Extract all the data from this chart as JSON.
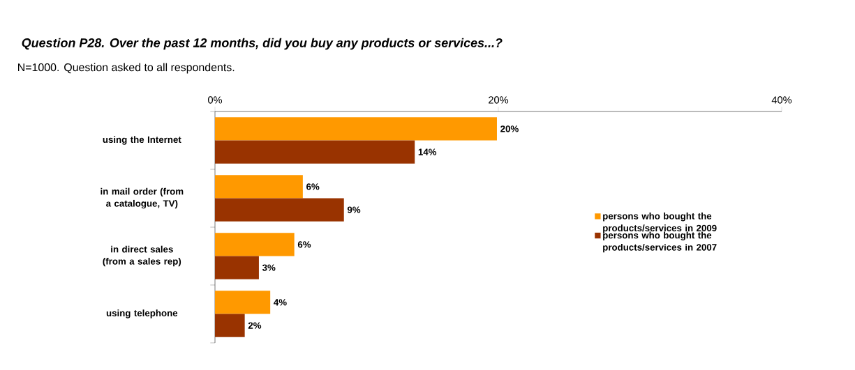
{
  "chart_data": {
    "type": "bar",
    "orientation": "horizontal",
    "title": "Question P28. Over the past 12 months, did you buy any products or services...?",
    "subtitle": "N=1000. Question asked to all respondents.",
    "categories": [
      "using the Internet",
      "in mail order (from a catalogue, TV)",
      "in direct sales (from a sales rep)",
      "using telephone"
    ],
    "series": [
      {
        "name": "persons who bought the products/services in 2009",
        "color": "#ff9900",
        "values": [
          19.9,
          6.2,
          5.6,
          3.9
        ],
        "value_labels": [
          "20%",
          "6%",
          "6%",
          "4%"
        ]
      },
      {
        "name": "persons who bought the products/services in 2007",
        "color": "#993300",
        "values": [
          14.1,
          9.1,
          3.1,
          2.1
        ],
        "value_labels": [
          "14%",
          "9%",
          "3%",
          "2%"
        ]
      }
    ],
    "xlim": [
      0,
      40
    ],
    "xticks": [
      {
        "value": 0,
        "label": "0%"
      },
      {
        "value": 20,
        "label": "20%"
      },
      {
        "value": 40,
        "label": "40%"
      }
    ],
    "legend": "right"
  }
}
